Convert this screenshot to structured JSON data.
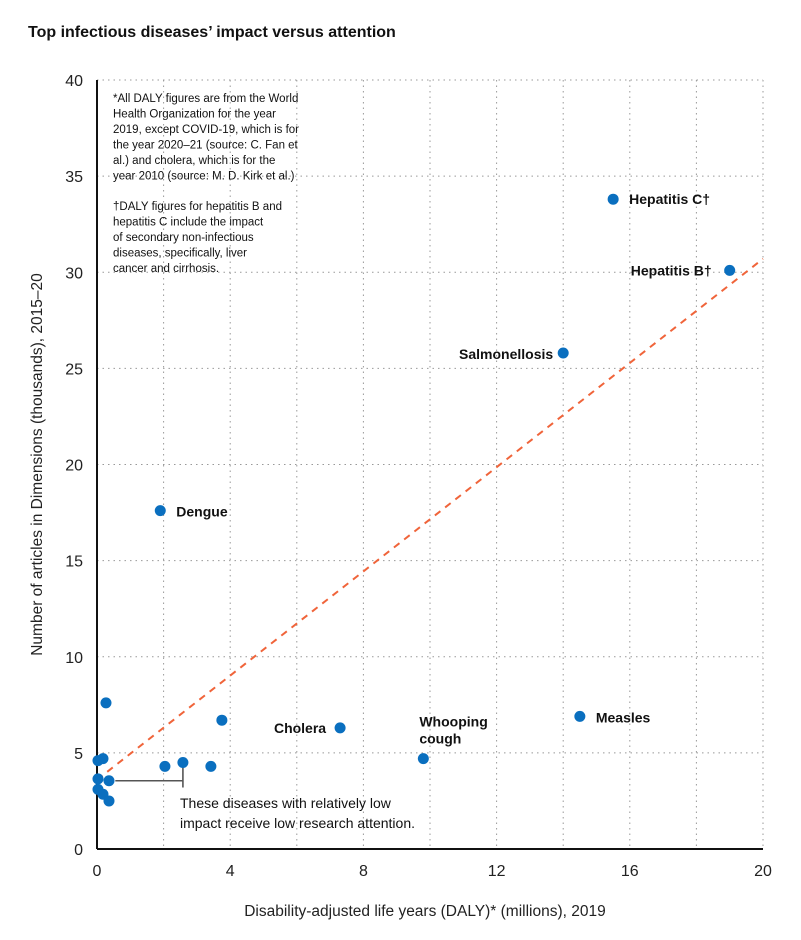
{
  "chart_data": {
    "type": "scatter",
    "title": "Top infectious diseases’ impact versus attention",
    "xlabel": "Disability-adjusted life years (DALY)* (millions), 2019",
    "ylabel": "Number of articles in Dimensions (thousands), 2015–20",
    "xlim": [
      0,
      20
    ],
    "ylim": [
      0,
      40
    ],
    "xticks": [
      0,
      4,
      8,
      12,
      16,
      20
    ],
    "yticks": [
      0,
      5,
      10,
      15,
      20,
      25,
      30,
      35,
      40
    ],
    "grid": true,
    "point_color": "#0a6fbf",
    "trend_color": "#f0643a",
    "trendline": {
      "x": [
        0,
        20
      ],
      "y": [
        3.6,
        30.7
      ]
    },
    "points": [
      {
        "label": "Hepatitis C†",
        "x": 15.5,
        "y": 33.8
      },
      {
        "label": "Hepatitis B†",
        "x": 19.0,
        "y": 30.1
      },
      {
        "label": "Salmonellosis",
        "x": 14.0,
        "y": 25.8
      },
      {
        "label": "Dengue",
        "x": 1.9,
        "y": 17.6
      },
      {
        "label": "Cholera",
        "x": 7.3,
        "y": 6.3
      },
      {
        "label": "Whooping cough",
        "x": 9.8,
        "y": 4.7
      },
      {
        "label": "Measles",
        "x": 14.5,
        "y": 6.9
      },
      {
        "label": "",
        "x": 0.27,
        "y": 7.6
      },
      {
        "label": "",
        "x": 3.75,
        "y": 6.7
      },
      {
        "label": "",
        "x": 0.03,
        "y": 4.6
      },
      {
        "label": "",
        "x": 0.18,
        "y": 4.7
      },
      {
        "label": "",
        "x": 2.04,
        "y": 4.3
      },
      {
        "label": "",
        "x": 2.58,
        "y": 4.5
      },
      {
        "label": "",
        "x": 3.42,
        "y": 4.3
      },
      {
        "label": "",
        "x": 0.03,
        "y": 3.65
      },
      {
        "label": "",
        "x": 0.36,
        "y": 3.55
      },
      {
        "label": "",
        "x": 0.03,
        "y": 3.1
      },
      {
        "label": "",
        "x": 0.18,
        "y": 2.85
      },
      {
        "label": "",
        "x": 0.36,
        "y": 2.5
      }
    ],
    "notes": [
      [
        "*All DALY figures are from the World",
        "Health Organization for the year",
        "2019, except COVID-19, which is for",
        "the year 2020–21 (source: C. Fan et",
        "al.) and cholera, which is for the",
        "year 2010 (source: M. D. Kirk et al.)"
      ],
      [
        "†DALY figures for hepatitis B and",
        "hepatitis C include the impact",
        "of secondary non-infectious",
        "diseases, specifically, liver",
        "cancer and cirrhosis."
      ]
    ],
    "annotation": [
      "These diseases with relatively low",
      "impact receive low research attention."
    ]
  }
}
